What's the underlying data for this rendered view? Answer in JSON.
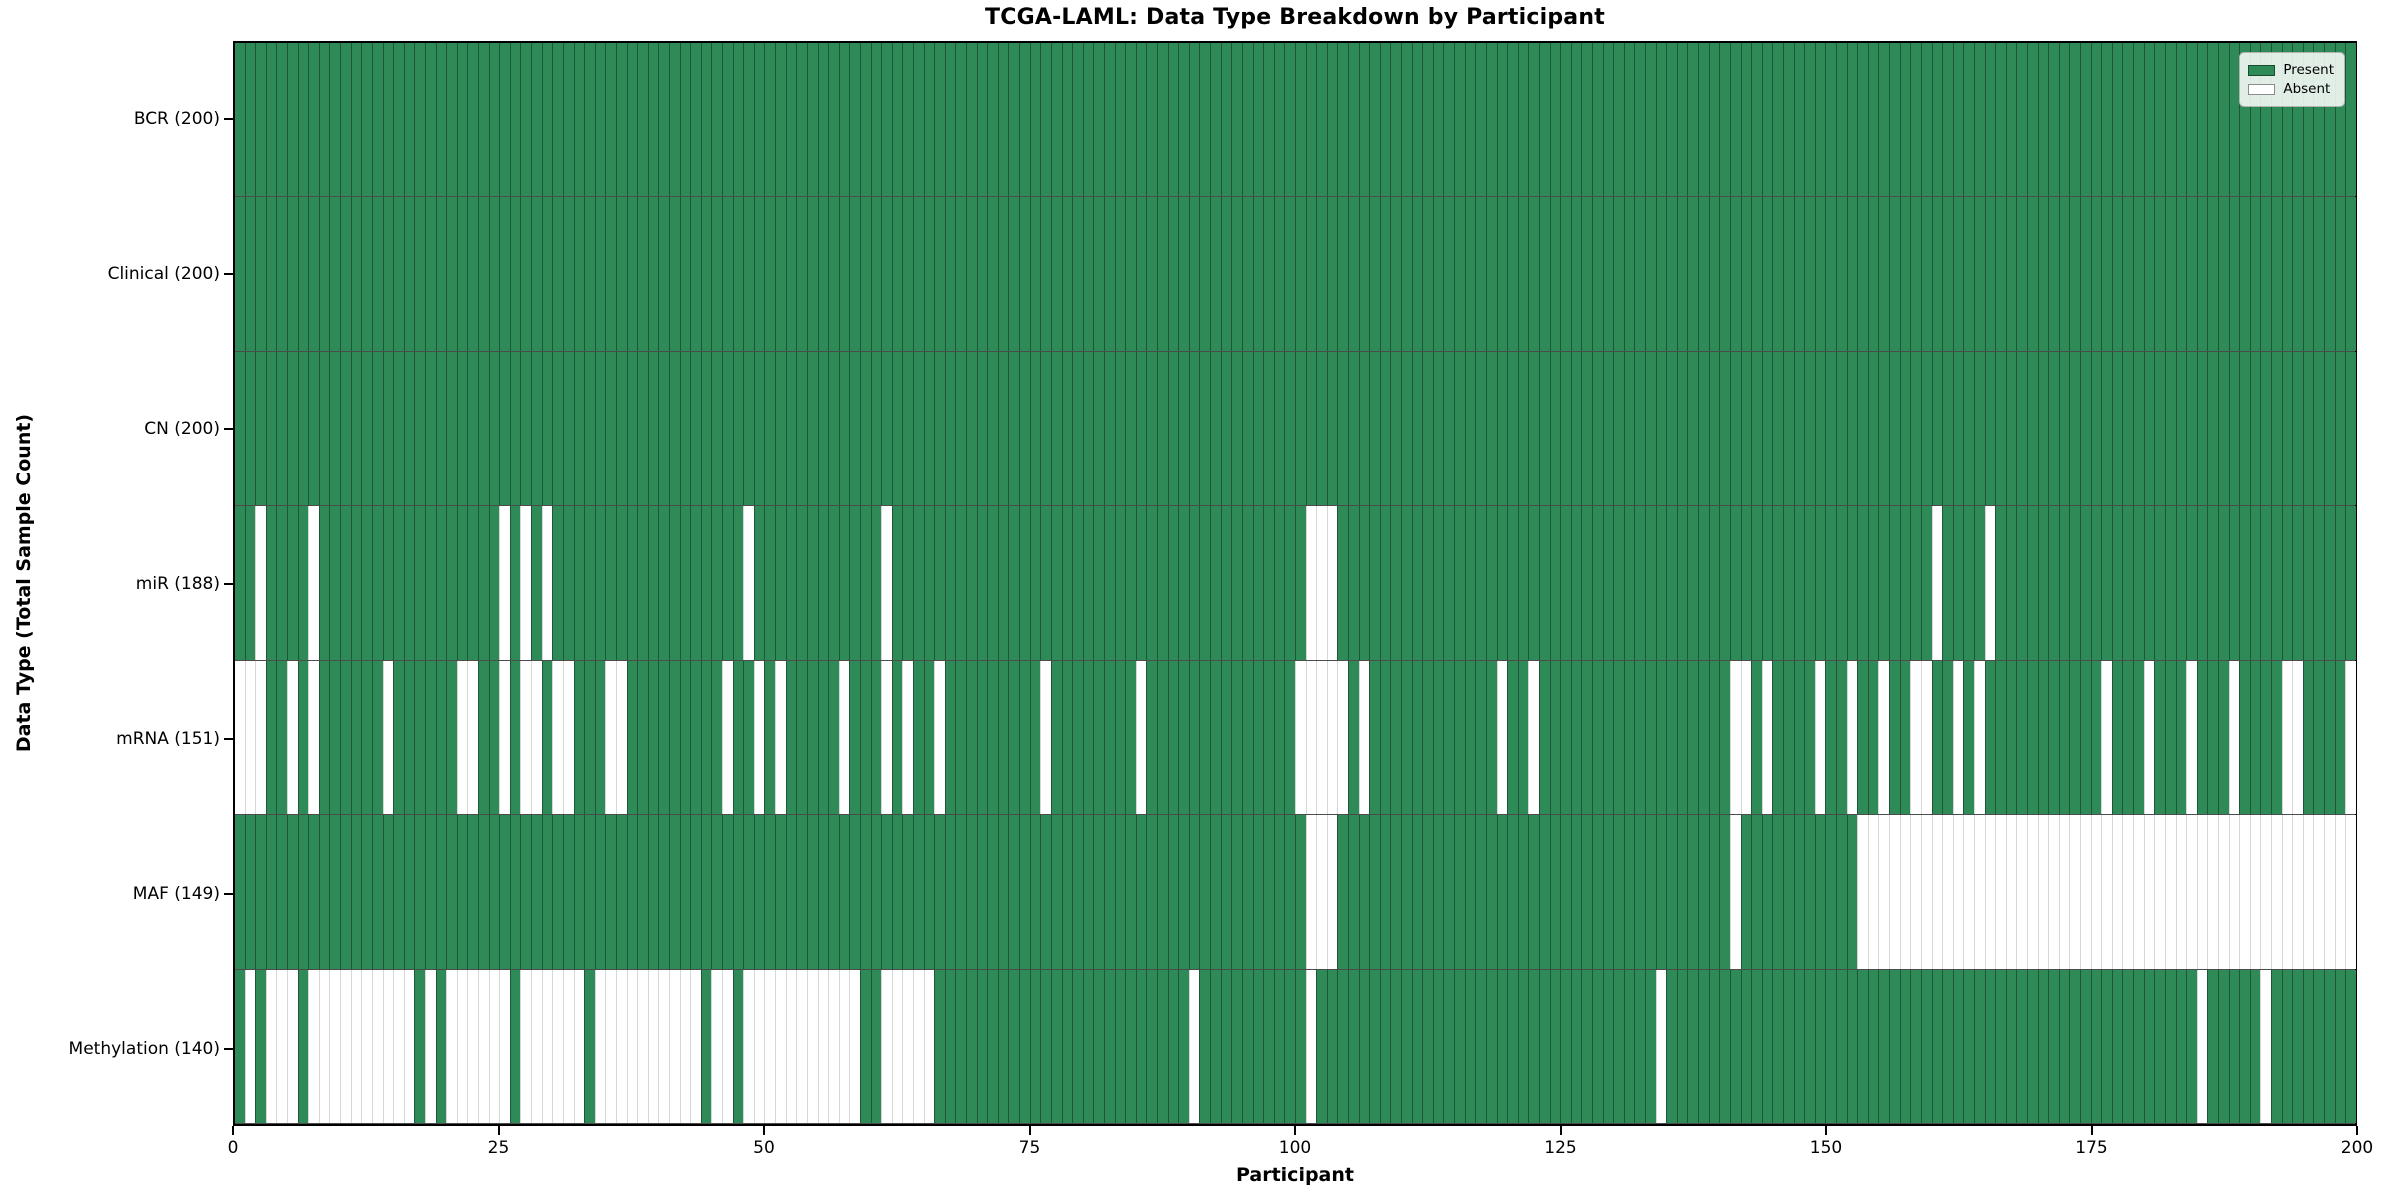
{
  "title": "TCGA-LAML: Data Type Breakdown by Participant",
  "x_axis": {
    "label": "Participant",
    "ticks": [
      0,
      25,
      50,
      75,
      100,
      125,
      150,
      175,
      200
    ]
  },
  "y_axis": {
    "label": "Data Type (Total Sample Count)"
  },
  "legend": {
    "items": [
      {
        "label": "Present",
        "color": "#2e8b57"
      },
      {
        "label": "Absent",
        "color": "#ffffff"
      }
    ]
  },
  "chart_data": {
    "type": "heatmap",
    "n_participants": 200,
    "x_range": [
      0,
      200
    ],
    "present_color": "#2e8b57",
    "absent_color": "#ffffff",
    "rows": [
      {
        "label": "BCR (200)",
        "name": "BCR",
        "present_count": 200,
        "absent_participants": []
      },
      {
        "label": "Clinical (200)",
        "name": "Clinical",
        "present_count": 200,
        "absent_participants": []
      },
      {
        "label": "CN (200)",
        "name": "CN",
        "present_count": 200,
        "absent_participants": []
      },
      {
        "label": "miR (188)",
        "name": "miR",
        "present_count": 188,
        "absent_participants": [
          2,
          7,
          25,
          27,
          29,
          48,
          61,
          101,
          102,
          103,
          160,
          165
        ]
      },
      {
        "label": "mRNA (151)",
        "name": "mRNA",
        "present_count": 151,
        "absent_participants": [
          0,
          1,
          2,
          5,
          7,
          14,
          21,
          22,
          25,
          27,
          28,
          30,
          31,
          35,
          36,
          46,
          49,
          51,
          57,
          61,
          63,
          66,
          76,
          85,
          100,
          101,
          102,
          103,
          104,
          106,
          119,
          122,
          141,
          142,
          144,
          149,
          152,
          155,
          158,
          159,
          162,
          164,
          176,
          180,
          184,
          188,
          193,
          194,
          199
        ]
      },
      {
        "label": "MAF (149)",
        "name": "MAF",
        "present_count": 149,
        "absent_participants": [
          101,
          102,
          103,
          141,
          153,
          154,
          155,
          156,
          157,
          158,
          159,
          160,
          161,
          162,
          163,
          164,
          165,
          166,
          167,
          168,
          169,
          170,
          171,
          172,
          173,
          174,
          175,
          176,
          177,
          178,
          179,
          180,
          181,
          182,
          183,
          184,
          185,
          186,
          187,
          188,
          189,
          190,
          191,
          192,
          193,
          194,
          195,
          196,
          197,
          198,
          199
        ]
      },
      {
        "label": "Methylation (140)",
        "name": "Methylation",
        "present_count": 140,
        "absent_participants": [
          1,
          3,
          4,
          5,
          7,
          8,
          9,
          10,
          11,
          12,
          13,
          14,
          15,
          16,
          18,
          20,
          21,
          22,
          23,
          24,
          25,
          27,
          28,
          29,
          30,
          31,
          32,
          34,
          35,
          36,
          37,
          38,
          39,
          40,
          41,
          42,
          43,
          45,
          46,
          48,
          49,
          50,
          51,
          52,
          53,
          54,
          55,
          56,
          57,
          58,
          61,
          62,
          63,
          64,
          65,
          90,
          101,
          134,
          185,
          191
        ]
      }
    ]
  }
}
